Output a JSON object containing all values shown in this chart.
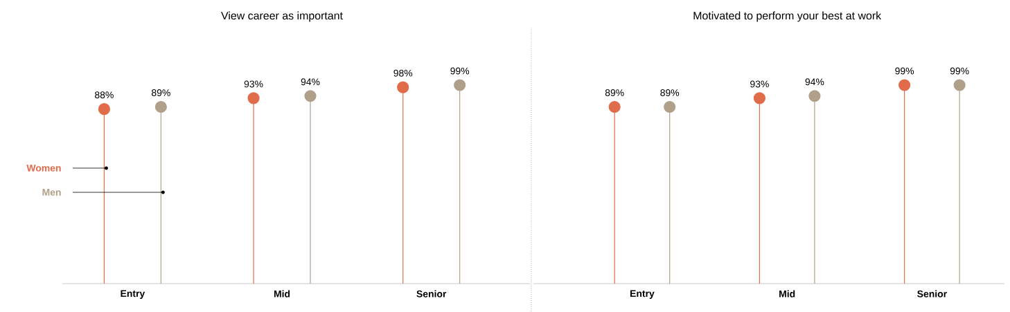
{
  "chart_data": [
    {
      "type": "lollipop",
      "title": "View career as important",
      "categories": [
        "Entry",
        "Mid",
        "Senior"
      ],
      "ylim": [
        8,
        99
      ],
      "tick_labels": "x",
      "legend": "left",
      "marker": "circle",
      "series": [
        {
          "name": "Women",
          "color": "#e06c4a",
          "values": [
            88,
            93,
            98
          ],
          "value_labels": [
            "88%",
            "93%",
            "98%"
          ]
        },
        {
          "name": "Men",
          "color": "#b0a08a",
          "values": [
            89,
            94,
            99
          ],
          "value_labels": [
            "89%",
            "94%",
            "99%"
          ]
        }
      ]
    },
    {
      "type": "lollipop",
      "title": "Motivated to perform your best at work",
      "categories": [
        "Entry",
        "Mid",
        "Senior"
      ],
      "ylim": [
        8,
        99
      ],
      "tick_labels": "x",
      "marker": "circle",
      "series": [
        {
          "color": "#e06c4a",
          "values": [
            89,
            93,
            99
          ],
          "value_labels": [
            "89%",
            "93%",
            "99%"
          ]
        },
        {
          "color": "#b0a08a",
          "values": [
            89,
            94,
            99
          ],
          "value_labels": [
            "89%",
            "94%",
            "99%"
          ]
        }
      ]
    }
  ]
}
